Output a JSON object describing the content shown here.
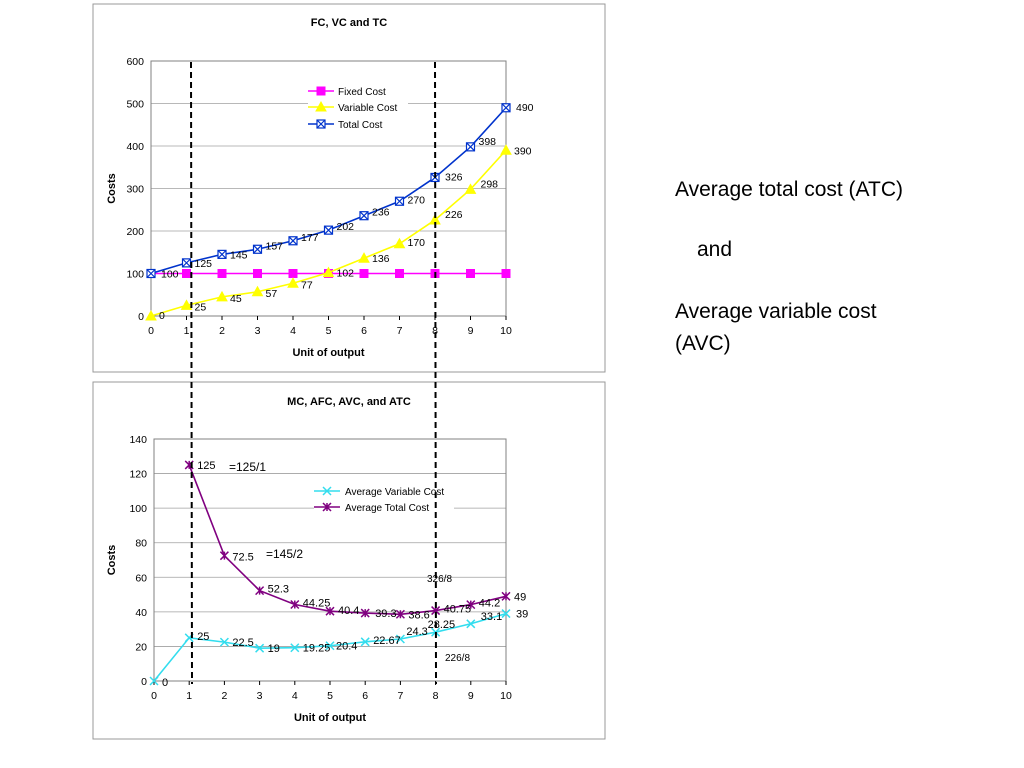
{
  "side_panel": {
    "atc_title": "Average total cost (ATC)",
    "and": "and",
    "avc_line1": "Average variable cost",
    "avc_line2": "(AVC)"
  },
  "chart_data": [
    {
      "type": "line",
      "title": "FC, VC and TC",
      "xlabel": "Unit of output",
      "ylabel": "Costs",
      "x": [
        0,
        1,
        2,
        3,
        4,
        5,
        6,
        7,
        8,
        9,
        10
      ],
      "xlim": [
        0,
        10
      ],
      "ylim": [
        0,
        600
      ],
      "yticks": [
        0,
        100,
        200,
        300,
        400,
        500,
        600
      ],
      "grid": true,
      "legend": "top-center",
      "series": [
        {
          "name": "Fixed Cost",
          "color": "#ff00ff",
          "marker": "square",
          "values": [
            100,
            100,
            100,
            100,
            100,
            100,
            100,
            100,
            100,
            100,
            100
          ]
        },
        {
          "name": "Variable Cost",
          "color": "#ffff00",
          "marker": "triangle",
          "values": [
            0,
            25,
            45,
            57,
            77,
            102,
            136,
            170,
            226,
            298,
            390
          ]
        },
        {
          "name": "Total Cost",
          "color": "#0033cc",
          "marker": "xsquare",
          "values": [
            100,
            125,
            145,
            157,
            177,
            202,
            236,
            270,
            326,
            398,
            490
          ]
        }
      ],
      "data_labels": [
        "100",
        "125",
        "145",
        "157",
        "177",
        "202",
        "236",
        "270",
        "326",
        "398",
        "490",
        "0",
        "25",
        "45",
        "57",
        "77",
        "102",
        "136",
        "170",
        "226",
        "298",
        "390"
      ]
    },
    {
      "type": "line",
      "title": "MC, AFC, AVC, and ATC",
      "xlabel": "Unit of output",
      "ylabel": "Costs",
      "x": [
        0,
        1,
        2,
        3,
        4,
        5,
        6,
        7,
        8,
        9,
        10
      ],
      "xlim": [
        0,
        10
      ],
      "ylim": [
        0,
        140
      ],
      "yticks": [
        0,
        20,
        40,
        60,
        80,
        100,
        120,
        140
      ],
      "grid": true,
      "legend": "right",
      "series": [
        {
          "name": "Average Variable Cost",
          "color": "#33ddee",
          "marker": "x",
          "x": [
            0,
            1,
            2,
            3,
            4,
            5,
            6,
            7,
            8,
            9,
            10
          ],
          "values": [
            0,
            25,
            22.5,
            19,
            19.25,
            20.4,
            22.67,
            24.3,
            28.25,
            33.1,
            39
          ]
        },
        {
          "name": "Average Total Cost",
          "color": "#800080",
          "marker": "star",
          "x": [
            1,
            2,
            3,
            4,
            5,
            6,
            7,
            8,
            9,
            10
          ],
          "values": [
            125,
            72.5,
            52.3,
            44.25,
            40.4,
            39.3,
            38.6,
            40.75,
            44.2,
            49
          ]
        }
      ],
      "avc_labels": [
        "0",
        "25",
        "22.5",
        "19",
        "19.25",
        "20.4",
        "22.67",
        "24.3",
        "28.25",
        "33.1",
        "39"
      ],
      "atc_labels": [
        "125",
        "72.5",
        "52.3",
        "44.25",
        "40.4",
        "39.3",
        "38.6",
        "40.75",
        "44.2",
        "49"
      ],
      "annotations": [
        {
          "text": "=125/1"
        },
        {
          "text": "=145/2"
        },
        {
          "text": "326/8"
        },
        {
          "text": "226/8"
        }
      ]
    }
  ]
}
